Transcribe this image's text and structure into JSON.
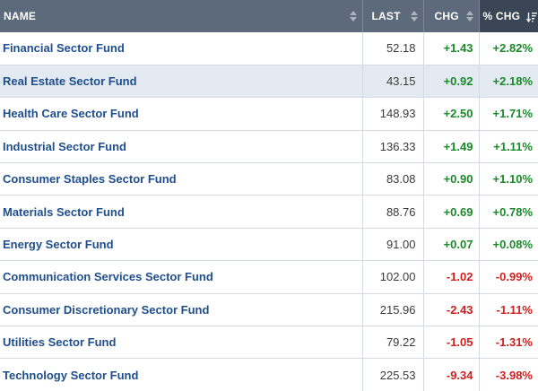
{
  "table": {
    "headers": {
      "name": "NAME",
      "last": "LAST",
      "chg": "CHG",
      "pct_chg": "% CHG"
    },
    "sorted_column": "pct_chg",
    "sort_direction": "descending",
    "colors": {
      "header_bg": "#5c6a7c",
      "sorted_header_bg": "#3a4656",
      "positive": "#1a8a2a",
      "negative": "#d0201e",
      "name_link": "#1f4e8c",
      "highlight_row": "#e4eaf2"
    },
    "rows": [
      {
        "name": "Financial Sector Fund",
        "last": "52.18",
        "chg": "+1.43",
        "pct_chg": "+2.82%",
        "direction": "pos",
        "highlighted": false
      },
      {
        "name": "Real Estate Sector Fund",
        "last": "43.15",
        "chg": "+0.92",
        "pct_chg": "+2.18%",
        "direction": "pos",
        "highlighted": true
      },
      {
        "name": "Health Care Sector Fund",
        "last": "148.93",
        "chg": "+2.50",
        "pct_chg": "+1.71%",
        "direction": "pos",
        "highlighted": false
      },
      {
        "name": "Industrial Sector Fund",
        "last": "136.33",
        "chg": "+1.49",
        "pct_chg": "+1.11%",
        "direction": "pos",
        "highlighted": false
      },
      {
        "name": "Consumer Staples Sector Fund",
        "last": "83.08",
        "chg": "+0.90",
        "pct_chg": "+1.10%",
        "direction": "pos",
        "highlighted": false
      },
      {
        "name": "Materials Sector Fund",
        "last": "88.76",
        "chg": "+0.69",
        "pct_chg": "+0.78%",
        "direction": "pos",
        "highlighted": false
      },
      {
        "name": "Energy Sector Fund",
        "last": "91.00",
        "chg": "+0.07",
        "pct_chg": "+0.08%",
        "direction": "pos",
        "highlighted": false
      },
      {
        "name": "Communication Services Sector Fund",
        "last": "102.00",
        "chg": "-1.02",
        "pct_chg": "-0.99%",
        "direction": "neg",
        "highlighted": false
      },
      {
        "name": "Consumer Discretionary Sector Fund",
        "last": "215.96",
        "chg": "-2.43",
        "pct_chg": "-1.11%",
        "direction": "neg",
        "highlighted": false
      },
      {
        "name": "Utilities Sector Fund",
        "last": "79.22",
        "chg": "-1.05",
        "pct_chg": "-1.31%",
        "direction": "neg",
        "highlighted": false
      },
      {
        "name": "Technology Sector Fund",
        "last": "225.53",
        "chg": "-9.34",
        "pct_chg": "-3.98%",
        "direction": "neg",
        "highlighted": false
      }
    ]
  }
}
